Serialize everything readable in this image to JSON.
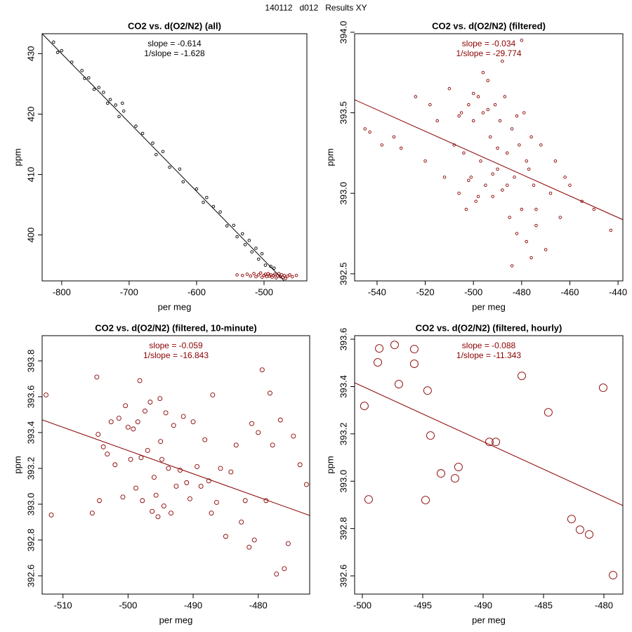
{
  "title": "140112   d012   Results XY",
  "chart_data": [
    {
      "type": "scatter",
      "title": "CO2 vs. d(O2/N2) (all)",
      "x_label": "per meg",
      "y_label": "ppm",
      "annotations": [
        "slope = -0.614",
        "1/slope = -1.628"
      ],
      "annotation_color": "#000000",
      "xlim": [
        -829,
        -436.5
      ],
      "ylim": [
        392.4,
        433.3
      ],
      "xticks": [
        -800,
        -700,
        -600,
        -500
      ],
      "yticks": [
        400,
        410,
        420,
        430
      ],
      "series": [
        {
          "color": "#000000",
          "x": [
            -812,
            -806,
            -800,
            -785,
            -770,
            -766,
            -760,
            -752,
            -745,
            -738,
            -732,
            -728,
            -720,
            -715,
            -710,
            -708,
            -690,
            -680,
            -665,
            -660,
            -650,
            -640,
            -625,
            -620,
            -600,
            -590,
            -585,
            -575,
            -565,
            -555,
            -545,
            -540,
            -532,
            -528,
            -522,
            -518,
            -512,
            -508,
            -503,
            -498,
            -490,
            -485
          ],
          "y": [
            431.9,
            430.2,
            430.5,
            428.6,
            427.2,
            425.9,
            426.0,
            424.1,
            424.4,
            423.6,
            421.8,
            422.4,
            421.5,
            419.6,
            421.8,
            420.5,
            418.0,
            416.8,
            415.2,
            413.3,
            413.8,
            411.2,
            410.9,
            408.8,
            407.6,
            405.4,
            406.2,
            404.7,
            403.8,
            401.5,
            401.6,
            399.7,
            400.2,
            398.4,
            399.1,
            397.2,
            397.8,
            396.0,
            396.9,
            395.0,
            394.8,
            394.5
          ]
        },
        {
          "color": "#8b0000",
          "x": [
            -540,
            -532,
            -525,
            -520,
            -515,
            -512,
            -508,
            -505,
            -503,
            -500,
            -498,
            -496,
            -494,
            -492,
            -490,
            -488,
            -486,
            -484,
            -482,
            -480,
            -478,
            -476,
            -474,
            -472,
            -470,
            -468,
            -465,
            -462,
            -458,
            -452
          ],
          "y": [
            393.4,
            393.3,
            393.5,
            393.2,
            393.6,
            393.1,
            393.4,
            393.7,
            393.0,
            393.3,
            393.5,
            393.1,
            393.6,
            393.2,
            393.4,
            393.0,
            393.3,
            393.5,
            392.9,
            393.2,
            393.6,
            393.1,
            393.4,
            393.0,
            393.3,
            392.8,
            393.2,
            393.4,
            393.1,
            393.3
          ]
        }
      ],
      "fit": {
        "color": "#000000",
        "x": [
          -829,
          -470
        ],
        "y": [
          433.3,
          392.4
        ]
      }
    },
    {
      "type": "scatter",
      "title": "CO2 vs. d(O2/N2) (filtered)",
      "x_label": "per meg",
      "y_label": "ppm",
      "annotations": [
        "slope = -0.034",
        "1/slope = -29.774"
      ],
      "annotation_color": "#8b0000",
      "xlim": [
        -549.3,
        -438
      ],
      "ylim": [
        392.456,
        393.991
      ],
      "xticks": [
        -540,
        -520,
        -500,
        -480,
        -460,
        -440
      ],
      "yticks": [
        {
          "value": 392.5,
          "label": "392.5"
        },
        {
          "value": 393,
          "label": "393.0"
        },
        393.5,
        {
          "value": 394,
          "label": "394.0"
        }
      ],
      "series": [
        {
          "color": "#8b0000",
          "x": [
            -545,
            -543,
            -538,
            -533,
            -530,
            -524,
            -520,
            -518,
            -515,
            -512,
            -510,
            -508,
            -506,
            -505,
            -504,
            -503,
            -502,
            -501,
            -500,
            -499,
            -498,
            -497,
            -496,
            -495,
            -494,
            -493,
            -492,
            -491,
            -490,
            -489,
            -488,
            -487,
            -486,
            -485,
            -484,
            -483,
            -482,
            -481,
            -480,
            -479,
            -478,
            -477,
            -476,
            -475,
            -474,
            -472,
            -470,
            -468,
            -466,
            -464,
            -462,
            -460,
            -455,
            -450,
            -443,
            -506,
            -502,
            -498,
            -494,
            -490,
            -486,
            -482,
            -478,
            -474,
            -496,
            -488,
            -480,
            -500,
            -492,
            -484,
            -476
          ],
          "y": [
            393.4,
            393.38,
            393.3,
            393.35,
            393.28,
            393.6,
            393.2,
            393.55,
            393.45,
            393.1,
            393.65,
            393.3,
            393.0,
            393.5,
            393.25,
            392.9,
            393.55,
            393.1,
            393.45,
            392.95,
            393.6,
            393.2,
            393.5,
            393.05,
            393.7,
            393.35,
            392.98,
            393.55,
            393.15,
            393.45,
            393.02,
            393.6,
            393.25,
            392.85,
            393.4,
            393.1,
            392.75,
            393.3,
            392.9,
            393.5,
            392.7,
            393.15,
            392.6,
            393.05,
            392.8,
            393.3,
            392.65,
            393.0,
            393.2,
            392.85,
            393.1,
            393.05,
            392.95,
            392.9,
            392.77,
            393.48,
            393.08,
            392.98,
            393.52,
            393.28,
            393.05,
            393.48,
            393.2,
            392.9,
            393.75,
            393.82,
            393.95,
            393.62,
            393.12,
            392.55,
            393.35
          ]
        }
      ],
      "fit": {
        "color": "#8b0000",
        "x": [
          -549.3,
          -438
        ],
        "y": [
          393.581,
          392.836
        ]
      }
    },
    {
      "type": "scatter",
      "title": "CO2 vs. d(O2/N2) (filtered, 10-minute)",
      "x_label": "per meg",
      "y_label": "ppm",
      "annotations": [
        "slope = -0.059",
        "1/slope = -16.843"
      ],
      "annotation_color": "#8b0000",
      "xlim": [
        -513.2,
        -472.1
      ],
      "ylim": [
        392.498,
        393.941
      ],
      "xticks": [
        -510,
        -500,
        -490,
        -480
      ],
      "yticks": [
        392.6,
        392.8,
        {
          "value": 393,
          "label": "393.0"
        },
        393.2,
        393.4,
        393.6,
        393.8
      ],
      "series": [
        {
          "color": "#8b0000",
          "x": [
            -512.6,
            -511.8,
            -505.5,
            -504.8,
            -504.6,
            -504.4,
            -503.8,
            -503.2,
            -502.6,
            -502.0,
            -501.4,
            -500.8,
            -500.4,
            -500.0,
            -499.6,
            -499.2,
            -498.8,
            -498.5,
            -498.2,
            -497.8,
            -497.4,
            -497.0,
            -496.6,
            -496.3,
            -496.0,
            -495.7,
            -495.4,
            -495.1,
            -494.8,
            -494.5,
            -494.2,
            -493.8,
            -493.4,
            -493.0,
            -492.6,
            -492.0,
            -491.5,
            -491.0,
            -490.5,
            -490.0,
            -489.4,
            -488.8,
            -488.2,
            -487.6,
            -487.0,
            -486.4,
            -485.8,
            -485.0,
            -484.2,
            -483.4,
            -482.6,
            -482.0,
            -481.4,
            -481.0,
            -480.6,
            -480.0,
            -479.4,
            -478.8,
            -478.2,
            -477.8,
            -477.2,
            -476.6,
            -476.0,
            -475.4,
            -474.6,
            -473.6,
            -472.6,
            -487.2,
            -495.0,
            -498.0
          ],
          "y": [
            393.61,
            392.94,
            392.95,
            393.71,
            393.39,
            393.02,
            393.32,
            393.28,
            393.46,
            393.22,
            393.48,
            393.04,
            393.55,
            393.43,
            393.25,
            393.42,
            393.09,
            393.46,
            393.69,
            393.02,
            393.52,
            393.3,
            393.57,
            392.96,
            393.15,
            393.05,
            392.93,
            393.59,
            393.25,
            392.99,
            393.51,
            393.2,
            392.95,
            393.44,
            393.1,
            393.19,
            393.49,
            393.12,
            393.03,
            393.46,
            393.21,
            393.1,
            393.36,
            393.13,
            393.61,
            393.01,
            393.2,
            392.82,
            393.18,
            393.33,
            392.9,
            393.02,
            392.76,
            393.45,
            392.8,
            393.4,
            393.75,
            393.02,
            393.62,
            393.33,
            392.61,
            393.47,
            392.64,
            392.78,
            393.38,
            393.22,
            393.11,
            392.95,
            393.35,
            393.26
          ]
        }
      ],
      "fit": {
        "color": "#8b0000",
        "x": [
          -513.2,
          -472.1
        ],
        "y": [
          393.471,
          392.937
        ]
      }
    },
    {
      "type": "scatter",
      "title": "CO2 vs. d(O2/N2) (filtered, hourly)",
      "x_label": "per meg",
      "y_label": "ppm",
      "annotations": [
        "slope = -0.088",
        "1/slope = -11.343"
      ],
      "annotation_color": "#8b0000",
      "xlim": [
        -500.64,
        -478.43
      ],
      "ylim": [
        392.523,
        393.615
      ],
      "xticks": [
        -500,
        -495,
        -490,
        -485,
        -480
      ],
      "yticks": [
        392.6,
        392.8,
        {
          "value": 393,
          "label": "393.0"
        },
        393.2,
        393.4,
        393.6
      ],
      "series": [
        {
          "color": "#8b0000",
          "x": [
            -499.83,
            -498.6,
            -498.72,
            -497.33,
            -495.7,
            -495.7,
            -496.98,
            -494.6,
            -494.36,
            -499.48,
            -494.77,
            -492.04,
            -493.49,
            -492.33,
            -489.48,
            -488.95,
            -486.8,
            -484.6,
            -480.06,
            -482.68,
            -481.98,
            -481.22,
            -479.24
          ],
          "y": [
            393.318,
            393.561,
            393.502,
            393.576,
            393.558,
            393.496,
            393.41,
            393.383,
            393.193,
            392.923,
            392.92,
            393.06,
            393.033,
            393.012,
            393.166,
            393.166,
            393.445,
            393.291,
            393.395,
            392.84,
            392.795,
            392.775,
            392.603
          ]
        }
      ],
      "fit": {
        "color": "#8b0000",
        "x": [
          -500.64,
          -478.43
        ],
        "y": [
          393.416,
          392.897
        ]
      }
    }
  ]
}
